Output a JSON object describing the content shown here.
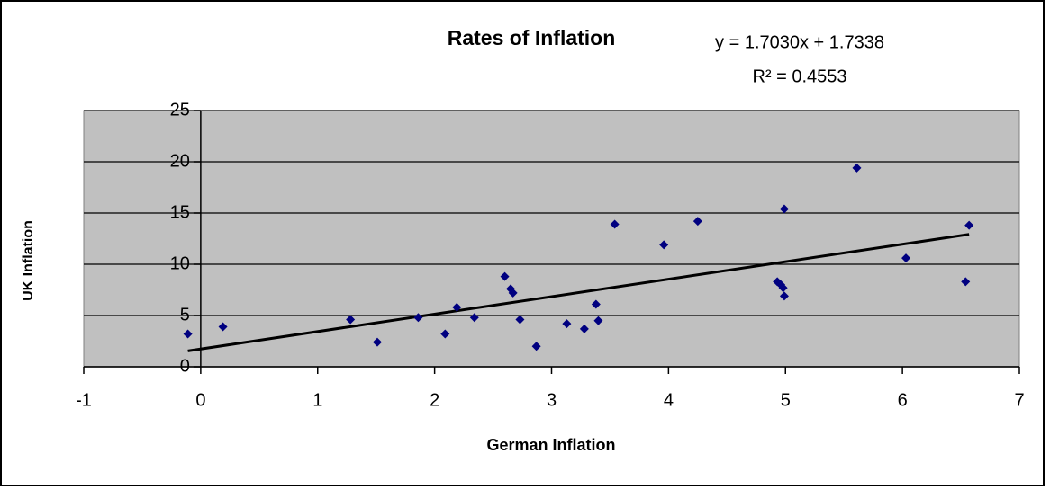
{
  "chart_data": {
    "type": "scatter",
    "title": "Rates of Inflation",
    "x_label": "German Inflation",
    "y_label": "UK Inflation",
    "x": [
      -0.11,
      0.19,
      1.28,
      1.51,
      1.86,
      2.09,
      2.19,
      2.34,
      2.6,
      2.65,
      2.67,
      2.73,
      2.87,
      3.13,
      3.28,
      3.38,
      3.4,
      3.54,
      3.96,
      4.25,
      4.93,
      4.96,
      4.98,
      4.99,
      4.99,
      5.61,
      6.03,
      6.54,
      6.57
    ],
    "values": [
      3.2,
      3.9,
      4.6,
      2.4,
      4.8,
      3.2,
      5.8,
      4.8,
      8.8,
      7.6,
      7.2,
      4.6,
      2.0,
      4.2,
      3.7,
      6.1,
      4.5,
      13.9,
      11.9,
      14.2,
      8.3,
      8.0,
      7.7,
      15.4,
      6.9,
      19.4,
      10.6,
      8.3,
      13.8
    ],
    "color": "#000080",
    "trendline": {
      "equation": "y = 1.7030x + 1.7338",
      "r_squared": "R² = 0.4553",
      "slope": 1.703,
      "intercept": 1.7338,
      "color": "#000000"
    },
    "xlim": [
      -1,
      7
    ],
    "xticks": [
      -1,
      0,
      1,
      2,
      3,
      4,
      5,
      6,
      7
    ],
    "ylim": [
      0,
      25
    ],
    "yticks": [
      0,
      5,
      10,
      15,
      20,
      25
    ],
    "grid": true,
    "plot_background": "#c0c0c0"
  }
}
